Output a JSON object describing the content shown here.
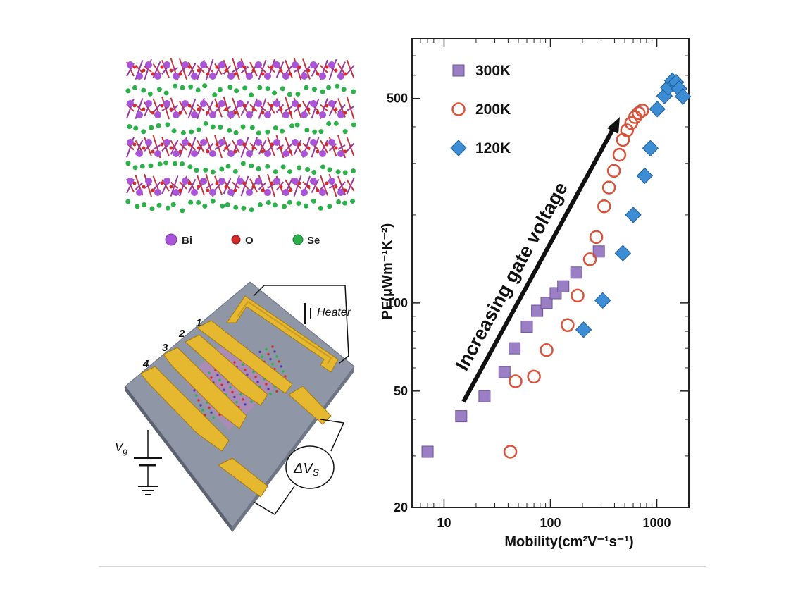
{
  "structure_panel": {
    "legend": [
      {
        "label": "Bi",
        "color": "#a855d8"
      },
      {
        "label": "O",
        "color": "#d42a2a"
      },
      {
        "label": "Se",
        "color": "#2cb04a"
      }
    ]
  },
  "device_panel": {
    "heater_label": "Heater",
    "electrode_labels": [
      "1",
      "2",
      "3",
      "4"
    ],
    "gate_label_main": "V",
    "gate_label_sub": "g",
    "voltage_label_main": "ΔV",
    "voltage_label_sub": "S",
    "electrode_color": "#e6b830",
    "substrate_color": "#8f97a6"
  },
  "chart_data": {
    "type": "scatter",
    "xscale": "log",
    "yscale": "log",
    "xlim": [
      5,
      2000
    ],
    "ylim": [
      20,
      800
    ],
    "x_ticks": [
      10,
      100,
      1000
    ],
    "y_ticks": [
      20,
      50,
      100,
      500
    ],
    "ylabel": "PF(μWm⁻¹K⁻²)",
    "xlabel": "Mobility(cm²V⁻¹s⁻¹)",
    "legend_position": "top-left",
    "annotation": "Increasing gate voltage",
    "series": [
      {
        "name": "300K",
        "marker": "square",
        "color": "#9b7fc4",
        "x": [
          7,
          14.5,
          24,
          37,
          46,
          60,
          75,
          92,
          112,
          132,
          175,
          285
        ],
        "y": [
          31,
          41,
          48,
          58,
          70,
          83,
          94,
          100,
          108,
          114,
          127,
          150
        ]
      },
      {
        "name": "200K",
        "marker": "circle",
        "color": "#d9533a",
        "x": [
          42,
          47,
          70,
          92,
          145,
          180,
          235,
          270,
          320,
          355,
          395,
          445,
          480,
          525,
          575,
          625,
          675,
          730
        ],
        "y": [
          31,
          54,
          56,
          69,
          84,
          106,
          141,
          168,
          214,
          248,
          283,
          321,
          361,
          389,
          412,
          432,
          446,
          455
        ]
      },
      {
        "name": "120K",
        "marker": "diamond",
        "color": "#3c8dd4",
        "x": [
          205,
          310,
          480,
          600,
          770,
          870,
          1010,
          1180,
          1280,
          1400,
          1520,
          1620,
          1760
        ],
        "y": [
          81,
          102,
          148,
          200,
          272,
          338,
          460,
          510,
          545,
          575,
          568,
          540,
          508
        ]
      }
    ]
  }
}
